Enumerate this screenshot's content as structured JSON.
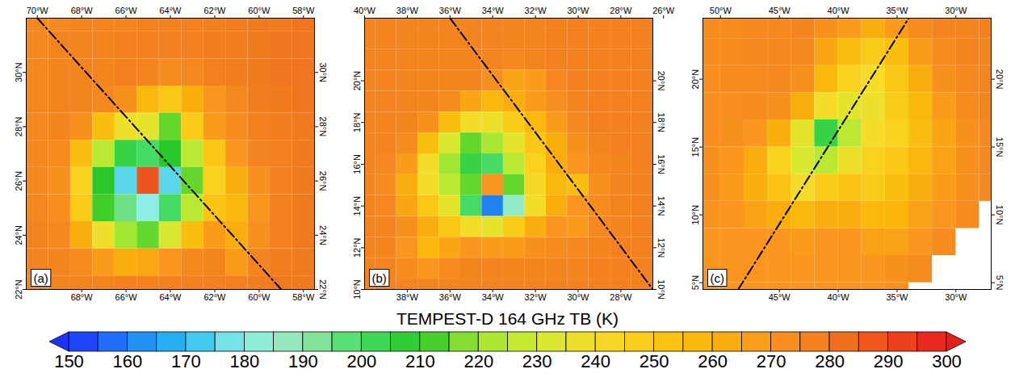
{
  "chart_data": [
    {
      "type": "heatmap",
      "panel": "(a)",
      "xlim": [
        -70.5,
        -57.5
      ],
      "ylim": [
        22,
        32
      ],
      "xticks": [
        {
          "value": -68,
          "label": "68°W"
        },
        {
          "value": -66,
          "label": "66°W"
        },
        {
          "value": -64,
          "label": "64°W"
        },
        {
          "value": -62,
          "label": "62°W"
        },
        {
          "value": -60,
          "label": "60°W"
        },
        {
          "value": -58,
          "label": "58°W"
        }
      ],
      "x2ticks": [
        {
          "value": -70,
          "label": "70°W"
        },
        {
          "value": -68,
          "label": "68°W"
        },
        {
          "value": -66,
          "label": "66°W"
        },
        {
          "value": -64,
          "label": "64°W"
        },
        {
          "value": -62,
          "label": "62°W"
        },
        {
          "value": -60,
          "label": "60°W"
        },
        {
          "value": -58,
          "label": "58°W"
        }
      ],
      "yticks": [
        {
          "value": 22,
          "label": "22°N"
        },
        {
          "value": 24,
          "label": "24°N"
        },
        {
          "value": 26,
          "label": "26°N"
        },
        {
          "value": 28,
          "label": "28°N"
        },
        {
          "value": 30,
          "label": "30°N"
        }
      ],
      "y2ticks": [
        {
          "value": 22,
          "label": "22°N"
        },
        {
          "value": 24,
          "label": "24°N"
        },
        {
          "value": 26,
          "label": "26°N"
        },
        {
          "value": 28,
          "label": "28°N"
        },
        {
          "value": 30,
          "label": "30°N"
        }
      ],
      "cells": {
        "lon": [
          -70,
          -69,
          -68,
          -67,
          -66,
          -65,
          -64,
          -63,
          -62,
          -61,
          -60,
          -59,
          -58
        ],
        "lat": [
          32,
          31,
          30,
          29,
          28,
          27,
          26,
          25,
          24,
          23,
          22
        ],
        "values": [
          [
            275,
            275,
            276,
            276,
            276,
            277,
            277,
            278,
            278,
            279,
            280,
            280,
            281
          ],
          [
            275,
            276,
            276,
            276,
            277,
            277,
            278,
            278,
            279,
            279,
            280,
            281,
            281
          ],
          [
            275,
            276,
            276,
            276,
            277,
            276,
            274,
            275,
            278,
            279,
            280,
            281,
            281
          ],
          [
            275,
            276,
            276,
            275,
            272,
            258,
            250,
            262,
            270,
            275,
            279,
            280,
            281
          ],
          [
            275,
            276,
            272,
            255,
            238,
            235,
            215,
            248,
            268,
            274,
            277,
            279,
            280
          ],
          [
            275,
            274,
            255,
            225,
            205,
            200,
            210,
            225,
            250,
            270,
            276,
            278,
            280
          ],
          [
            275,
            272,
            245,
            210,
            175,
            288,
            175,
            215,
            245,
            262,
            272,
            278,
            280
          ],
          [
            275,
            273,
            248,
            212,
            195,
            180,
            200,
            225,
            252,
            258,
            270,
            278,
            280
          ],
          [
            276,
            275,
            262,
            238,
            220,
            215,
            232,
            255,
            268,
            262,
            272,
            278,
            280
          ],
          [
            276,
            276,
            274,
            268,
            262,
            264,
            270,
            275,
            276,
            268,
            276,
            279,
            280
          ],
          [
            276,
            276,
            276,
            276,
            277,
            277,
            277,
            278,
            278,
            278,
            279,
            280,
            280
          ]
        ]
      },
      "line": {
        "lon": [
          -70,
          -59
        ],
        "lat": [
          32,
          22
        ],
        "line_style": "dashdot",
        "color": "#000000"
      }
    },
    {
      "type": "heatmap",
      "panel": "(b)",
      "xlim": [
        -40,
        -26.5
      ],
      "ylim": [
        10,
        23
      ],
      "xticks": [
        {
          "value": -38,
          "label": "38°W"
        },
        {
          "value": -36,
          "label": "36°W"
        },
        {
          "value": -34,
          "label": "34°W"
        },
        {
          "value": -32,
          "label": "32°W"
        },
        {
          "value": -30,
          "label": "30°W"
        },
        {
          "value": -28,
          "label": "28°W"
        }
      ],
      "x2ticks": [
        {
          "value": -40,
          "label": "40°W"
        },
        {
          "value": -38,
          "label": "38°W"
        },
        {
          "value": -36,
          "label": "36°W"
        },
        {
          "value": -34,
          "label": "34°W"
        },
        {
          "value": -32,
          "label": "32°W"
        },
        {
          "value": -30,
          "label": "30°W"
        },
        {
          "value": -28,
          "label": "28°W"
        },
        {
          "value": -26,
          "label": "26°W"
        }
      ],
      "yticks": [
        {
          "value": 10,
          "label": "10°N"
        },
        {
          "value": 12,
          "label": "12°N"
        },
        {
          "value": 14,
          "label": "14°N"
        },
        {
          "value": 16,
          "label": "16°N"
        },
        {
          "value": 18,
          "label": "18°N"
        },
        {
          "value": 20,
          "label": "20°N"
        }
      ],
      "y2ticks": [
        {
          "value": 10,
          "label": "10°N"
        },
        {
          "value": 12,
          "label": "12°N"
        },
        {
          "value": 14,
          "label": "14°N"
        },
        {
          "value": 16,
          "label": "16°N"
        },
        {
          "value": 18,
          "label": "18°N"
        },
        {
          "value": 20,
          "label": "20°N"
        }
      ],
      "cells": {
        "lon": [
          -40,
          -39,
          -38,
          -37,
          -36,
          -35,
          -34,
          -33,
          -32,
          -31,
          -30,
          -29,
          -28,
          -27
        ],
        "lat": [
          23,
          22,
          21,
          20,
          19,
          18,
          17,
          16,
          15,
          14,
          13,
          12,
          11,
          10
        ],
        "values": [
          [
            276,
            276,
            276,
            276,
            276,
            276,
            276,
            276,
            276,
            277,
            277,
            277,
            277,
            277
          ],
          [
            276,
            276,
            276,
            276,
            276,
            276,
            276,
            276,
            276,
            277,
            277,
            277,
            277,
            277
          ],
          [
            276,
            276,
            276,
            276,
            276,
            276,
            276,
            275,
            276,
            277,
            277,
            277,
            277,
            277
          ],
          [
            276,
            276,
            276,
            276,
            276,
            276,
            272,
            265,
            268,
            275,
            277,
            277,
            277,
            277
          ],
          [
            276,
            276,
            276,
            276,
            274,
            265,
            258,
            262,
            268,
            273,
            276,
            277,
            277,
            277
          ],
          [
            276,
            276,
            276,
            272,
            255,
            240,
            238,
            248,
            258,
            268,
            275,
            277,
            277,
            277
          ],
          [
            276,
            276,
            274,
            255,
            232,
            215,
            222,
            235,
            250,
            262,
            272,
            276,
            277,
            277
          ],
          [
            276,
            275,
            268,
            240,
            220,
            205,
            200,
            225,
            245,
            262,
            270,
            275,
            276,
            277
          ],
          [
            276,
            274,
            262,
            240,
            225,
            215,
            270,
            215,
            242,
            258,
            255,
            272,
            276,
            277
          ],
          [
            276,
            275,
            265,
            250,
            235,
            200,
            160,
            185,
            240,
            262,
            270,
            274,
            276,
            277
          ],
          [
            276,
            276,
            272,
            262,
            250,
            240,
            235,
            248,
            262,
            270,
            268,
            275,
            276,
            277
          ],
          [
            276,
            276,
            270,
            258,
            265,
            270,
            268,
            268,
            272,
            274,
            275,
            276,
            277,
            277
          ],
          [
            276,
            276,
            274,
            270,
            274,
            276,
            276,
            276,
            276,
            276,
            276,
            277,
            277,
            277
          ],
          [
            276,
            276,
            276,
            276,
            276,
            276,
            276,
            276,
            276,
            277,
            277,
            277,
            277,
            277
          ]
        ]
      },
      "line": {
        "lon": [
          -36,
          -26.5
        ],
        "lat": [
          23,
          10
        ],
        "line_style": "dashdot",
        "color": "#000000"
      }
    },
    {
      "type": "heatmap",
      "panel": "(c)",
      "xlim": [
        -51.5,
        -27
      ],
      "ylim": [
        4.5,
        24.5
      ],
      "xticks": [
        {
          "value": -45,
          "label": "45°W"
        },
        {
          "value": -40,
          "label": "40°W"
        },
        {
          "value": -35,
          "label": "35°W"
        },
        {
          "value": -30,
          "label": "30°W"
        }
      ],
      "x2ticks": [
        {
          "value": -50,
          "label": "50°W"
        },
        {
          "value": -45,
          "label": "45°W"
        },
        {
          "value": -40,
          "label": "40°W"
        },
        {
          "value": -35,
          "label": "35°W"
        },
        {
          "value": -30,
          "label": "30°W"
        }
      ],
      "yticks": [
        {
          "value": 5,
          "label": "5°N"
        },
        {
          "value": 10,
          "label": "10°N"
        },
        {
          "value": 15,
          "label": "15°N"
        },
        {
          "value": 20,
          "label": "20°N"
        }
      ],
      "y2ticks": [
        {
          "value": 5,
          "label": "5°N"
        },
        {
          "value": 10,
          "label": "10°N"
        },
        {
          "value": 15,
          "label": "15°N"
        },
        {
          "value": 20,
          "label": "20°N"
        }
      ],
      "cells": {
        "lon": [
          -51,
          -49,
          -47,
          -45,
          -43,
          -41,
          -39,
          -37,
          -35,
          -33,
          -31,
          -29,
          -27
        ],
        "lat": [
          24,
          22,
          20,
          18,
          16,
          14,
          12,
          10,
          8,
          6,
          4
        ],
        "values": [
          [
            274,
            274,
            275,
            275,
            276,
            272,
            268,
            262,
            268,
            274,
            276,
            276,
            277
          ],
          [
            274,
            274,
            275,
            275,
            275,
            265,
            255,
            248,
            255,
            268,
            274,
            276,
            276
          ],
          [
            273,
            274,
            274,
            275,
            272,
            258,
            245,
            240,
            250,
            262,
            272,
            275,
            276
          ],
          [
            273,
            273,
            274,
            272,
            262,
            240,
            235,
            238,
            248,
            258,
            268,
            274,
            276
          ],
          [
            273,
            272,
            270,
            262,
            235,
            205,
            225,
            240,
            245,
            255,
            265,
            272,
            275
          ],
          [
            272,
            270,
            262,
            245,
            232,
            225,
            238,
            245,
            250,
            258,
            266,
            272,
            275
          ],
          [
            272,
            268,
            262,
            252,
            240,
            248,
            252,
            248,
            255,
            262,
            268,
            272,
            275
          ],
          [
            271,
            270,
            266,
            262,
            258,
            262,
            262,
            258,
            260,
            266,
            270,
            274,
            null
          ],
          [
            270,
            270,
            270,
            270,
            268,
            270,
            270,
            266,
            266,
            270,
            274,
            null,
            null
          ],
          [
            270,
            270,
            270,
            270,
            270,
            270,
            270,
            270,
            272,
            274,
            null,
            null,
            null
          ],
          [
            270,
            270,
            270,
            270,
            270,
            270,
            270,
            270,
            272,
            null,
            null,
            null,
            null
          ]
        ]
      },
      "line": {
        "lon": [
          -48.5,
          -34
        ],
        "lat": [
          4.5,
          24.5
        ],
        "line_style": "dashdot",
        "color": "#000000"
      }
    }
  ],
  "colorbar": {
    "title": "TEMPEST-D 164 GHz TB (K)",
    "lim": [
      150,
      300
    ],
    "ticks": [
      150,
      160,
      170,
      180,
      190,
      200,
      210,
      220,
      230,
      240,
      250,
      260,
      270,
      280,
      290,
      300
    ]
  }
}
